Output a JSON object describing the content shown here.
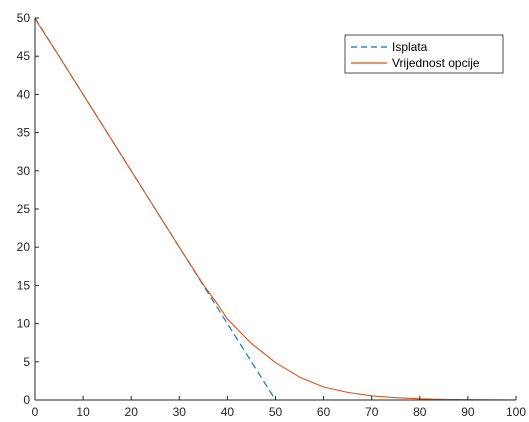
{
  "chart_data": {
    "type": "line",
    "title": "",
    "xlabel": "",
    "ylabel": "",
    "xlim": [
      0,
      100
    ],
    "ylim": [
      0,
      50
    ],
    "x_ticks": [
      0,
      10,
      20,
      30,
      40,
      50,
      60,
      70,
      80,
      90,
      100
    ],
    "y_ticks": [
      0,
      5,
      10,
      15,
      20,
      25,
      30,
      35,
      40,
      45,
      50
    ],
    "grid": false,
    "legend_position": "top-right",
    "series": [
      {
        "name": "Isplata",
        "style": "dashed",
        "color": "#0072BD",
        "x": [
          0,
          5,
          10,
          15,
          20,
          25,
          30,
          35,
          40,
          45,
          50,
          55,
          60,
          65,
          70,
          75,
          80,
          85,
          90,
          95,
          100
        ],
        "y": [
          50,
          45,
          40,
          35,
          30,
          25,
          20,
          15,
          10,
          5,
          0,
          0,
          0,
          0,
          0,
          0,
          0,
          0,
          0,
          0,
          0
        ]
      },
      {
        "name": "Vrijednost opcije",
        "style": "solid",
        "color": "#D95319",
        "x": [
          0,
          5,
          10,
          15,
          20,
          25,
          30,
          35,
          38,
          40,
          45,
          50,
          55,
          60,
          65,
          70,
          75,
          80,
          85,
          90,
          95,
          100
        ],
        "y": [
          49.9,
          45,
          40,
          35,
          30,
          25,
          20,
          15.1,
          12.5,
          10.6,
          7.4,
          4.9,
          3.0,
          1.7,
          1.0,
          0.55,
          0.3,
          0.15,
          0.08,
          0.04,
          0.02,
          0.01
        ]
      }
    ]
  }
}
